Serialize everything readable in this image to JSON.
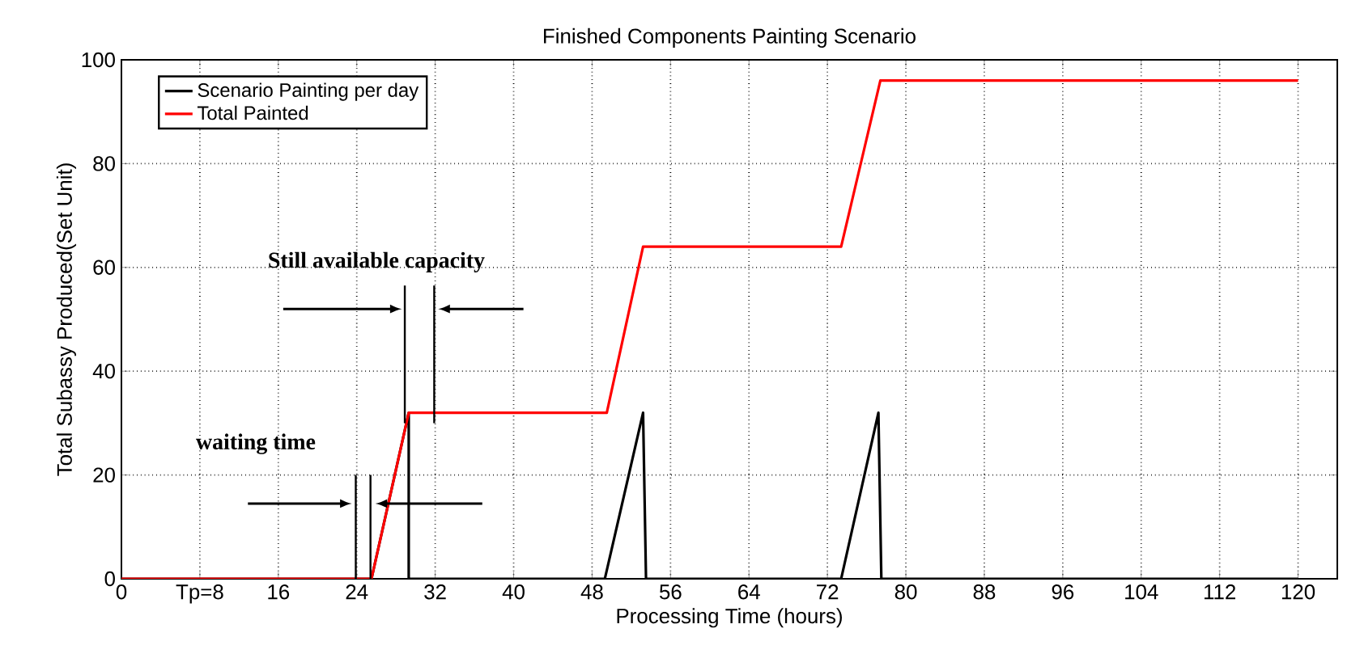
{
  "chart_data": {
    "type": "line",
    "title": "Finished Components Painting Scenario",
    "xlabel": "Processing Time (hours)",
    "ylabel": "Total Subassy Produced(Set Unit)",
    "xlim": [
      0,
      124
    ],
    "ylim": [
      0,
      100
    ],
    "xticks": [
      0,
      {
        "value": 8,
        "label": "Tp=8"
      },
      16,
      24,
      32,
      40,
      48,
      56,
      64,
      72,
      80,
      88,
      96,
      104,
      112,
      120
    ],
    "yticks": [
      0,
      20,
      40,
      60,
      80,
      100
    ],
    "grid": true,
    "legend": "top left",
    "line_style": "solid",
    "marker": "none",
    "series": [
      {
        "name": "Scenario Painting per day",
        "color": "#000000",
        "x": [
          0,
          25.5,
          29.3,
          29.3,
          49.3,
          53.2,
          53.5,
          73.4,
          77.2,
          77.5,
          120
        ],
        "values": [
          0,
          0,
          32,
          0,
          0,
          32,
          0,
          0,
          32,
          0,
          0
        ]
      },
      {
        "name": "Total Painted",
        "color": "#ff0000",
        "x": [
          0,
          25.5,
          29.3,
          49.5,
          53.2,
          73.4,
          77.4,
          120
        ],
        "values": [
          0,
          0,
          32,
          32,
          64,
          64,
          96,
          96
        ]
      }
    ],
    "annotations": [
      {
        "text": "Still available capacity",
        "x": 29.3,
        "y": 32
      },
      "waiting time"
    ]
  }
}
